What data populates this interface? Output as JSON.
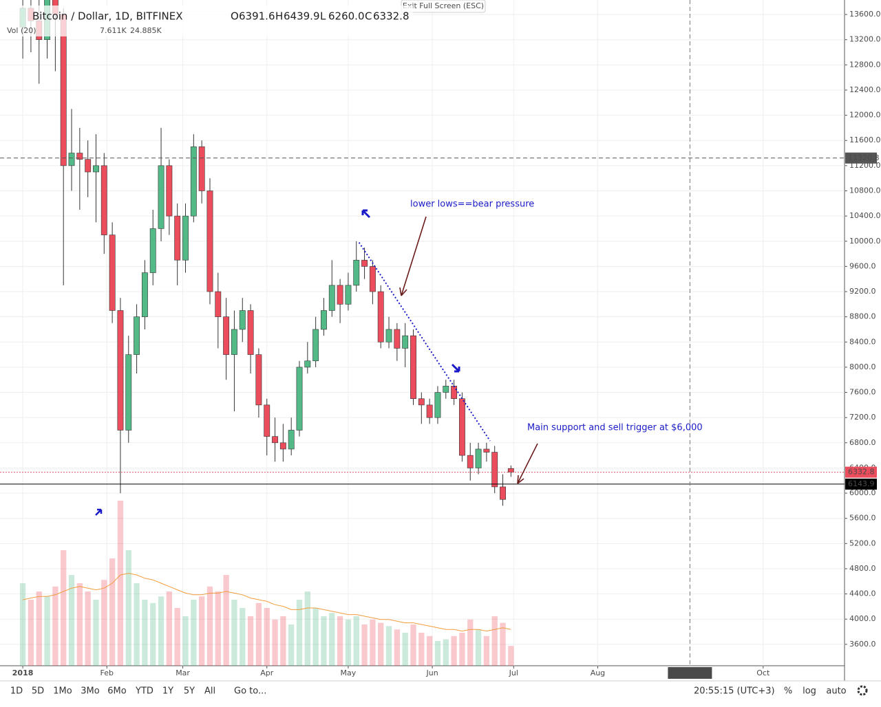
{
  "header": {
    "title": "Bitcoin / Dollar, 1D, BITFINEX",
    "ohlc": [
      {
        "label": "O",
        "value": "6391.6"
      },
      {
        "label": "H",
        "value": "6439.9"
      },
      {
        "label": "L",
        "value": "6260.0"
      },
      {
        "label": "C",
        "value": "6332.8"
      }
    ],
    "volume_label": "Vol (20)",
    "volume_values": [
      "7.611K",
      "24.885K"
    ],
    "exit": "Exit Full Screen (ESC)"
  },
  "toolbar": {
    "ranges": [
      "1D",
      "5D",
      "1Mo",
      "3Mo",
      "6Mo",
      "YTD",
      "1Y",
      "5Y",
      "All"
    ],
    "goto": "Go to...",
    "time": "20:55:15 (UTC+3)",
    "options": [
      "%",
      "log",
      "auto"
    ]
  },
  "chart_data": {
    "type": "candlestick",
    "x": [
      0,
      3,
      6,
      9,
      12,
      15,
      18,
      21,
      24,
      27,
      30,
      33,
      36,
      39,
      42,
      45,
      48,
      51,
      54,
      57,
      60,
      63,
      66,
      69,
      72,
      75,
      78,
      81,
      84,
      87,
      90,
      93,
      96,
      99,
      102,
      105,
      108,
      111,
      114,
      117,
      120,
      123,
      126,
      129,
      132,
      135,
      138,
      141,
      144,
      147,
      150,
      153,
      156,
      159,
      162,
      165,
      168,
      171,
      174,
      177,
      180
    ],
    "open": [
      13400,
      13700,
      13500,
      13200,
      13900,
      13600,
      11200,
      11400,
      11300,
      11100,
      11200,
      10100,
      8900,
      7000,
      8200,
      8800,
      9500,
      10200,
      11200,
      10400,
      9700,
      10400,
      11500,
      10800,
      9200,
      8800,
      8200,
      8600,
      8900,
      8200,
      7400,
      6900,
      6800,
      6700,
      7000,
      8000,
      8100,
      8600,
      8900,
      9300,
      9000,
      9300,
      9700,
      9600,
      9200,
      8400,
      8600,
      8300,
      8500,
      7500,
      7400,
      7200,
      7600,
      7700,
      7500,
      6600,
      6400,
      6700,
      6650,
      6100,
      6391.6
    ],
    "high": [
      14100,
      14200,
      13900,
      14300,
      14000,
      13700,
      12100,
      11800,
      11600,
      11700,
      11400,
      10300,
      9100,
      8500,
      9000,
      9700,
      10500,
      11800,
      11300,
      10600,
      10600,
      11700,
      11600,
      11000,
      9500,
      9100,
      8900,
      9100,
      9000,
      8300,
      7500,
      7200,
      7100,
      7200,
      8100,
      8400,
      8800,
      9100,
      9700,
      9400,
      9500,
      10000,
      9900,
      9700,
      9300,
      8800,
      8700,
      8700,
      8600,
      7600,
      7500,
      7700,
      7800,
      7800,
      7600,
      6800,
      6800,
      6800,
      6750,
      6300,
      6439.9
    ],
    "low": [
      12900,
      13000,
      12500,
      12900,
      12700,
      9300,
      10800,
      10500,
      10700,
      10300,
      9800,
      8700,
      6000,
      6800,
      7900,
      8600,
      9300,
      10000,
      10100,
      9300,
      9500,
      10300,
      10600,
      9000,
      8300,
      7800,
      7300,
      8400,
      7900,
      7200,
      6600,
      6500,
      6500,
      6600,
      6900,
      7900,
      8000,
      8500,
      8800,
      8700,
      8900,
      9200,
      9400,
      9000,
      8300,
      8300,
      8100,
      8000,
      7400,
      7100,
      7100,
      7100,
      7500,
      7400,
      6500,
      6200,
      6300,
      6500,
      6000,
      5800,
      6260.0
    ],
    "close": [
      13700,
      13500,
      13200,
      13900,
      13600,
      11200,
      11400,
      11300,
      11100,
      11200,
      10100,
      8900,
      7000,
      8200,
      8800,
      9500,
      10200,
      11200,
      10400,
      9700,
      10400,
      11500,
      10800,
      9200,
      8800,
      8200,
      8600,
      8900,
      8200,
      7400,
      6900,
      6800,
      6700,
      7000,
      8000,
      8100,
      8600,
      8900,
      9300,
      9000,
      9300,
      9700,
      9600,
      9200,
      8400,
      8600,
      8300,
      8500,
      7500,
      7400,
      7200,
      7600,
      7700,
      7500,
      6600,
      6400,
      6700,
      6650,
      6100,
      5900,
      6332.8
    ],
    "volume": [
      50,
      40,
      45,
      42,
      48,
      70,
      55,
      50,
      45,
      40,
      52,
      65,
      100,
      70,
      50,
      40,
      38,
      42,
      45,
      35,
      30,
      40,
      42,
      48,
      45,
      55,
      40,
      35,
      30,
      38,
      35,
      28,
      30,
      25,
      40,
      45,
      35,
      30,
      32,
      30,
      28,
      30,
      25,
      28,
      26,
      24,
      22,
      20,
      25,
      20,
      18,
      15,
      16,
      18,
      20,
      28,
      22,
      18,
      30,
      26,
      12
    ],
    "volume_ma": [
      40,
      41,
      42,
      42,
      43,
      45,
      47,
      48,
      47,
      46,
      47,
      50,
      55,
      56,
      55,
      53,
      52,
      50,
      48,
      46,
      44,
      43,
      43,
      44,
      44,
      45,
      44,
      43,
      41,
      40,
      39,
      37,
      36,
      34,
      34,
      35,
      35,
      34,
      33,
      32,
      31,
      31,
      30,
      29,
      28,
      28,
      27,
      26,
      26,
      25,
      24,
      23,
      22,
      22,
      21,
      22,
      22,
      21,
      22,
      23,
      22
    ],
    "up_color": "#53b987",
    "down_color": "#eb4d5c",
    "volume_ma_color": "#f39c3c",
    "xlim": [
      -8.4,
      303
    ],
    "ylim": [
      3260,
      13830
    ],
    "xticks": [
      {
        "value": 0,
        "label": "2018"
      },
      {
        "value": 31,
        "label": "Feb"
      },
      {
        "value": 59,
        "label": "Mar"
      },
      {
        "value": 90,
        "label": "Apr"
      },
      {
        "value": 120,
        "label": "May"
      },
      {
        "value": 151,
        "label": "Jun"
      },
      {
        "value": 181,
        "label": "Jul"
      },
      {
        "value": 212,
        "label": "Aug"
      },
      {
        "value": 273,
        "label": "Oct"
      }
    ],
    "yticks": [
      {
        "value": 3600,
        "label": "3600.0"
      },
      {
        "value": 4000,
        "label": "4000.0"
      },
      {
        "value": 4400,
        "label": "4400.0"
      },
      {
        "value": 4800,
        "label": "4800.0"
      },
      {
        "value": 5200,
        "label": "5200.0"
      },
      {
        "value": 5600,
        "label": "5600.0"
      },
      {
        "value": 6000,
        "label": "6000.0"
      },
      {
        "value": 6400,
        "label": "6400.0"
      },
      {
        "value": 6800,
        "label": "6800.0"
      },
      {
        "value": 7200,
        "label": "7200.0"
      },
      {
        "value": 7600,
        "label": "7600.0"
      },
      {
        "value": 8000,
        "label": "8000.0"
      },
      {
        "value": 8400,
        "label": "8400.0"
      },
      {
        "value": 8800,
        "label": "8800.0"
      },
      {
        "value": 9200,
        "label": "9200.0"
      },
      {
        "value": 9600,
        "label": "9600.0"
      },
      {
        "value": 10000,
        "label": "10000.0"
      },
      {
        "value": 10400,
        "label": "10400.0"
      },
      {
        "value": 10800,
        "label": "10800.0"
      },
      {
        "value": 11200,
        "label": "11200.0"
      },
      {
        "value": 11600,
        "label": "11600.0"
      },
      {
        "value": 12000,
        "label": "12000.0"
      },
      {
        "value": 12400,
        "label": "12400.0"
      },
      {
        "value": 12800,
        "label": "12800.0"
      },
      {
        "value": 13200,
        "label": "13200.0"
      },
      {
        "value": 13600,
        "label": "13600.0"
      }
    ],
    "grid": true,
    "hlines": [
      {
        "value": 11320.8,
        "color": "#555555",
        "style": "dashed"
      },
      {
        "value": 6332.8,
        "color": "#eb4d5c",
        "style": "dotted"
      },
      {
        "value": 6143.9,
        "color": "#000000",
        "style": "solid"
      }
    ],
    "crosshair_x": {
      "value": 246,
      "label": "2018-09-04"
    },
    "trendline": {
      "x": [
        124,
        172.3
      ],
      "y": [
        9980,
        6830
      ],
      "color": "#1a1ac8"
    },
    "annotations": [
      "lower lows==bear pressure",
      "Main support and sell trigger at $6,000"
    ]
  }
}
